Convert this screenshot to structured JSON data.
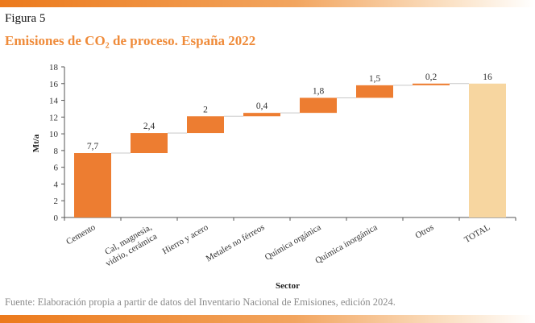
{
  "figure": {
    "label": "Figura 5",
    "title": "Emisiones de CO₂ de proceso. España 2022",
    "source": "Fuente: Elaboración propia a partir de datos del Inventario Nacional de Emisiones, edición 2024."
  },
  "colors": {
    "increment_bar": "#ed7d31",
    "total_bar": "#f7d6a0",
    "accent_title": "#ef8b3a",
    "connector": "#c8c8c8"
  },
  "chart_data": {
    "type": "bar",
    "subtype": "waterfall",
    "title": "Emisiones de CO₂ de proceso. España 2022",
    "xlabel": "Sector",
    "ylabel": "Mt/a",
    "ylim": [
      0,
      18
    ],
    "yticks": [
      0,
      2,
      4,
      6,
      8,
      10,
      12,
      14,
      16,
      18
    ],
    "grid": false,
    "categories": [
      "Cemento",
      "Cal, magnesia,\nvidrio, cerámica",
      "Hierro y acero",
      "Metales no férreos",
      "Química orgánica",
      "Química inorgánica",
      "Otros",
      "TOTAL"
    ],
    "values": [
      7.7,
      2.4,
      2,
      0.4,
      1.8,
      1.5,
      0.2,
      16
    ],
    "value_labels": [
      "7,7",
      "2,4",
      "2",
      "0,4",
      "1,8",
      "1,5",
      "0,2",
      "16"
    ],
    "is_total": [
      false,
      false,
      false,
      false,
      false,
      false,
      false,
      true
    ]
  }
}
